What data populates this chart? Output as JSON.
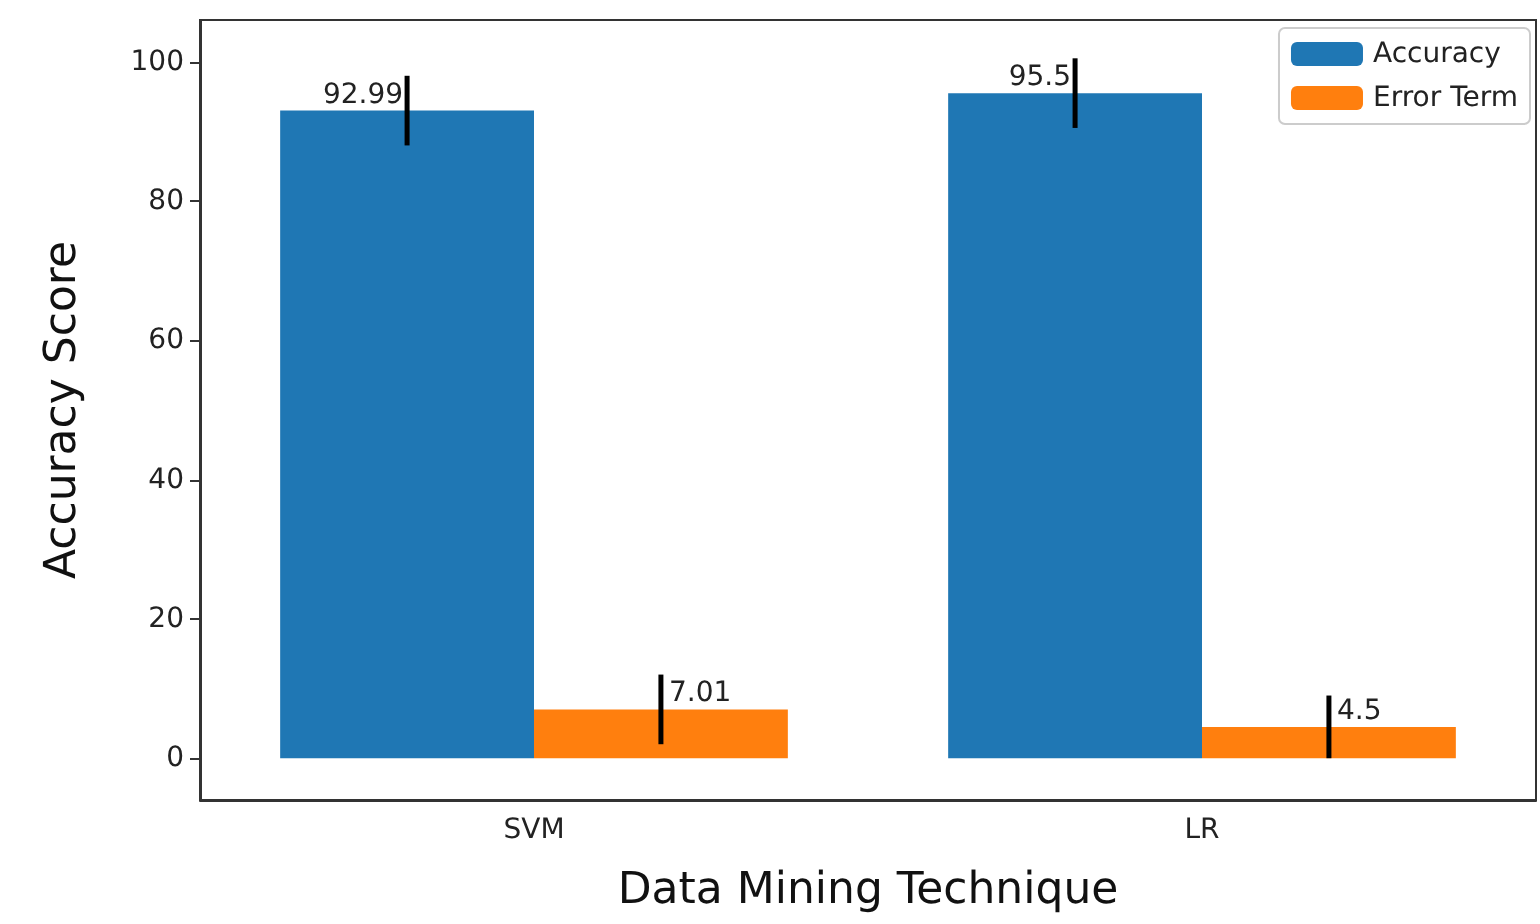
{
  "chart_data": {
    "type": "bar",
    "xlabel": "Data Mining Technique",
    "ylabel": "Accuracy Score",
    "categories": [
      "SVM",
      "LR"
    ],
    "series": [
      {
        "name": "Accuracy",
        "color": "#1f77b4",
        "values": [
          92.99,
          95.5
        ],
        "errors": [
          5,
          5
        ]
      },
      {
        "name": "Error Term",
        "color": "#ff7f0e",
        "values": [
          7.01,
          4.5
        ],
        "errors": [
          5,
          4.5
        ]
      }
    ],
    "ylim": [
      -6,
      106
    ],
    "yticks": [
      0,
      20,
      40,
      60,
      80,
      100
    ],
    "data_labels": true,
    "legend": "top right",
    "grid": false
  }
}
